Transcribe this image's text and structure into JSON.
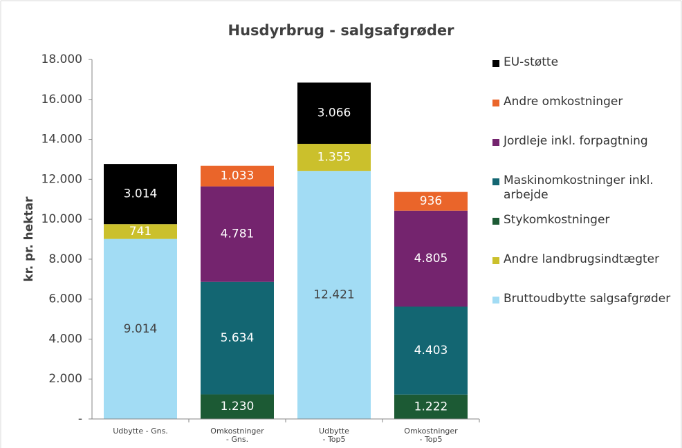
{
  "chart_data": {
    "type": "stacked-bar",
    "title": "Husdyrbrug - salgsafgrøder",
    "y_label": "kr. pr. hektar",
    "categories": [
      "Udbytte - Gns.",
      "Omkostninger\n- Gns.",
      "Udbytte\n- Top5",
      "Omkostninger\n- Top5"
    ],
    "ylim": [
      0,
      18000
    ],
    "yticks": [
      {
        "value": 0,
        "label": "-"
      },
      {
        "value": 2000,
        "label": "2.000"
      },
      {
        "value": 4000,
        "label": "4.000"
      },
      {
        "value": 6000,
        "label": "6.000"
      },
      {
        "value": 8000,
        "label": "8.000"
      },
      {
        "value": 10000,
        "label": "10.000"
      },
      {
        "value": 12000,
        "label": "12.000"
      },
      {
        "value": 14000,
        "label": "14.000"
      },
      {
        "value": 16000,
        "label": "16.000"
      },
      {
        "value": 18000,
        "label": "18.000"
      }
    ],
    "grid": false,
    "legend": "right",
    "series": [
      {
        "name": "Bruttoudbytte salgsafgrøder",
        "color": "#a2dcf4",
        "label_color": "#404040",
        "values": [
          9014,
          null,
          12421,
          null
        ],
        "value_labels": [
          "9.014",
          null,
          "12.421",
          null
        ]
      },
      {
        "name": "Andre landbrugsindtægter",
        "color": "#cbc02c",
        "label_color": "#ffffff",
        "values": [
          741,
          null,
          1355,
          null
        ],
        "value_labels": [
          "741",
          null,
          "1.355",
          null
        ]
      },
      {
        "name": "Stykomkostninger",
        "color": "#1c5a34",
        "label_color": "#ffffff",
        "values": [
          null,
          1230,
          null,
          1222
        ],
        "value_labels": [
          null,
          "1.230",
          null,
          "1.222"
        ]
      },
      {
        "name": "Maskinomkostninger inkl. arbejde",
        "color": "#136672",
        "label_color": "#ffffff",
        "values": [
          null,
          5634,
          null,
          4403
        ],
        "value_labels": [
          null,
          "5.634",
          null,
          "4.403"
        ]
      },
      {
        "name": "Jordleje inkl. forpagtning",
        "color": "#74246e",
        "label_color": "#ffffff",
        "values": [
          null,
          4781,
          null,
          4805
        ],
        "value_labels": [
          null,
          "4.781",
          null,
          "4.805"
        ]
      },
      {
        "name": "Andre omkostninger",
        "color": "#ea652a",
        "label_color": "#ffffff",
        "values": [
          null,
          1033,
          null,
          936
        ],
        "value_labels": [
          null,
          "1.033",
          null,
          "936"
        ]
      },
      {
        "name": "EU-støtte",
        "color": "#000000",
        "label_color": "#ffffff",
        "values": [
          3014,
          null,
          3066,
          null
        ],
        "value_labels": [
          "3.014",
          null,
          "3.066",
          null
        ]
      }
    ]
  }
}
